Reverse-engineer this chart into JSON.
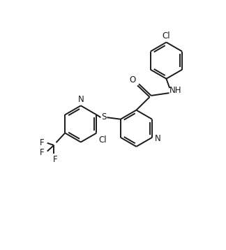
{
  "bg_color": "#ffffff",
  "line_color": "#1a1a1a",
  "line_width": 1.4,
  "font_size": 8.5,
  "fig_width": 3.24,
  "fig_height": 3.58,
  "dpi": 100,
  "xlim": [
    0,
    10
  ],
  "ylim": [
    0,
    11
  ]
}
